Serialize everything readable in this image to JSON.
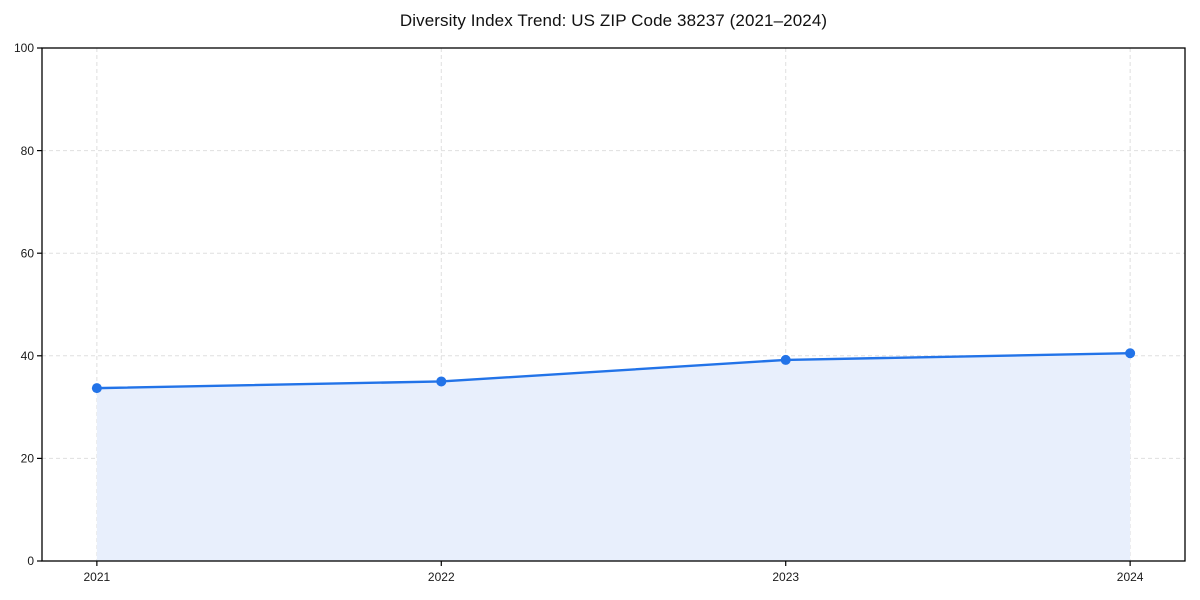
{
  "chart_data": {
    "type": "area",
    "title": "Diversity Index Trend: US ZIP Code 38237 (2021–2024)",
    "categories": [
      "2021",
      "2022",
      "2023",
      "2024"
    ],
    "values": [
      33.7,
      35.0,
      39.2,
      40.5
    ],
    "xlabel": "",
    "ylabel": "",
    "ylim": [
      0,
      100
    ],
    "yticks": [
      0,
      20,
      40,
      60,
      80,
      100
    ],
    "grid": "dashed-both-axes",
    "legend": "none",
    "marker": "circle",
    "colors": {
      "line": "#2273e8",
      "marker": "#2273e8",
      "fill": "#e8effc",
      "grid": "#dfdfdf",
      "axis": "#000000",
      "tick_text": "#1a1a1a"
    }
  }
}
